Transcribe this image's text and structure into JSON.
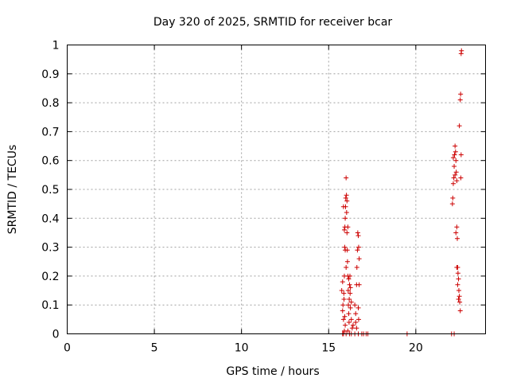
{
  "chart_data": {
    "type": "scatter",
    "title": "Day 320 of 2025, SRMTID for receiver bcar",
    "xlabel": "GPS time / hours",
    "ylabel": "SRMTID / TECUs",
    "xlim": [
      0,
      24
    ],
    "ylim": [
      0,
      1
    ],
    "xticks": [
      0,
      5,
      10,
      15,
      20
    ],
    "yticks": [
      0,
      0.1,
      0.2,
      0.3,
      0.4,
      0.5,
      0.6,
      0.7,
      0.8,
      0.9,
      1
    ],
    "ytick_labels": [
      "0",
      "0.1",
      "0.2",
      "0.3",
      "0.4",
      "0.5",
      "0.6",
      "0.7",
      "0.8",
      "0.9",
      "1"
    ],
    "grid": true,
    "marker": "+",
    "series": [
      {
        "name": "SRMTID",
        "color": "#cc0000",
        "points": [
          [
            15.8,
            0.0
          ],
          [
            15.85,
            0.0
          ],
          [
            15.9,
            0.01
          ],
          [
            15.95,
            0.03
          ],
          [
            16.0,
            0.0
          ],
          [
            16.1,
            0.01
          ],
          [
            16.2,
            0.0
          ],
          [
            16.3,
            0.0
          ],
          [
            16.5,
            0.0
          ],
          [
            16.7,
            0.0
          ],
          [
            16.9,
            0.0
          ],
          [
            17.0,
            0.0
          ],
          [
            17.15,
            0.0
          ],
          [
            17.25,
            0.0
          ],
          [
            19.5,
            0.0
          ],
          [
            22.05,
            0.0
          ],
          [
            22.2,
            0.0
          ],
          [
            15.75,
            0.15
          ],
          [
            15.8,
            0.18
          ],
          [
            15.82,
            0.1
          ],
          [
            15.85,
            0.05
          ],
          [
            15.88,
            0.12
          ],
          [
            15.9,
            0.2
          ],
          [
            15.92,
            0.3
          ],
          [
            15.93,
            0.37
          ],
          [
            15.95,
            0.4
          ],
          [
            15.97,
            0.44
          ],
          [
            15.98,
            0.47
          ],
          [
            16.0,
            0.54
          ],
          [
            16.02,
            0.48
          ],
          [
            16.03,
            0.42
          ],
          [
            16.05,
            0.35
          ],
          [
            16.07,
            0.29
          ],
          [
            16.08,
            0.25
          ],
          [
            16.1,
            0.2
          ],
          [
            16.12,
            0.15
          ],
          [
            16.13,
            0.1
          ],
          [
            16.15,
            0.07
          ],
          [
            16.17,
            0.04
          ],
          [
            16.18,
            0.12
          ],
          [
            16.2,
            0.17
          ],
          [
            16.22,
            0.2
          ],
          [
            16.23,
            0.14
          ],
          [
            16.25,
            0.09
          ],
          [
            16.3,
            0.05
          ],
          [
            16.35,
            0.02
          ],
          [
            16.4,
            0.03
          ],
          [
            15.85,
            0.44
          ],
          [
            15.9,
            0.36
          ],
          [
            15.95,
            0.29
          ],
          [
            16.0,
            0.23
          ],
          [
            16.05,
            0.46
          ],
          [
            16.1,
            0.37
          ],
          [
            15.8,
            0.08
          ],
          [
            15.87,
            0.14
          ],
          [
            15.92,
            0.06
          ],
          [
            16.15,
            0.19
          ],
          [
            16.25,
            0.16
          ],
          [
            16.3,
            0.11
          ],
          [
            16.5,
            0.1
          ],
          [
            16.55,
            0.07
          ],
          [
            16.6,
            0.17
          ],
          [
            16.62,
            0.23
          ],
          [
            16.65,
            0.29
          ],
          [
            16.67,
            0.35
          ],
          [
            16.7,
            0.34
          ],
          [
            16.72,
            0.3
          ],
          [
            16.75,
            0.26
          ],
          [
            16.55,
            0.04
          ],
          [
            16.6,
            0.02
          ],
          [
            16.7,
            0.09
          ],
          [
            16.72,
            0.05
          ],
          [
            16.75,
            0.17
          ],
          [
            22.1,
            0.45
          ],
          [
            22.12,
            0.47
          ],
          [
            22.15,
            0.52
          ],
          [
            22.18,
            0.54
          ],
          [
            22.2,
            0.58
          ],
          [
            22.22,
            0.62
          ],
          [
            22.25,
            0.65
          ],
          [
            22.28,
            0.63
          ],
          [
            22.3,
            0.6
          ],
          [
            22.32,
            0.56
          ],
          [
            22.35,
            0.53
          ],
          [
            22.15,
            0.61
          ],
          [
            22.25,
            0.55
          ],
          [
            22.3,
            0.35
          ],
          [
            22.35,
            0.37
          ],
          [
            22.38,
            0.33
          ],
          [
            22.4,
            0.23
          ],
          [
            22.42,
            0.21
          ],
          [
            22.45,
            0.19
          ],
          [
            22.47,
            0.15
          ],
          [
            22.5,
            0.13
          ],
          [
            22.52,
            0.11
          ],
          [
            22.55,
            0.08
          ],
          [
            22.4,
            0.17
          ],
          [
            22.45,
            0.12
          ],
          [
            22.5,
            0.72
          ],
          [
            22.55,
            0.81
          ],
          [
            22.57,
            0.83
          ],
          [
            22.6,
            0.97
          ],
          [
            22.62,
            0.98
          ],
          [
            22.6,
            0.62
          ],
          [
            22.58,
            0.54
          ],
          [
            22.35,
            0.23
          ]
        ]
      }
    ]
  }
}
